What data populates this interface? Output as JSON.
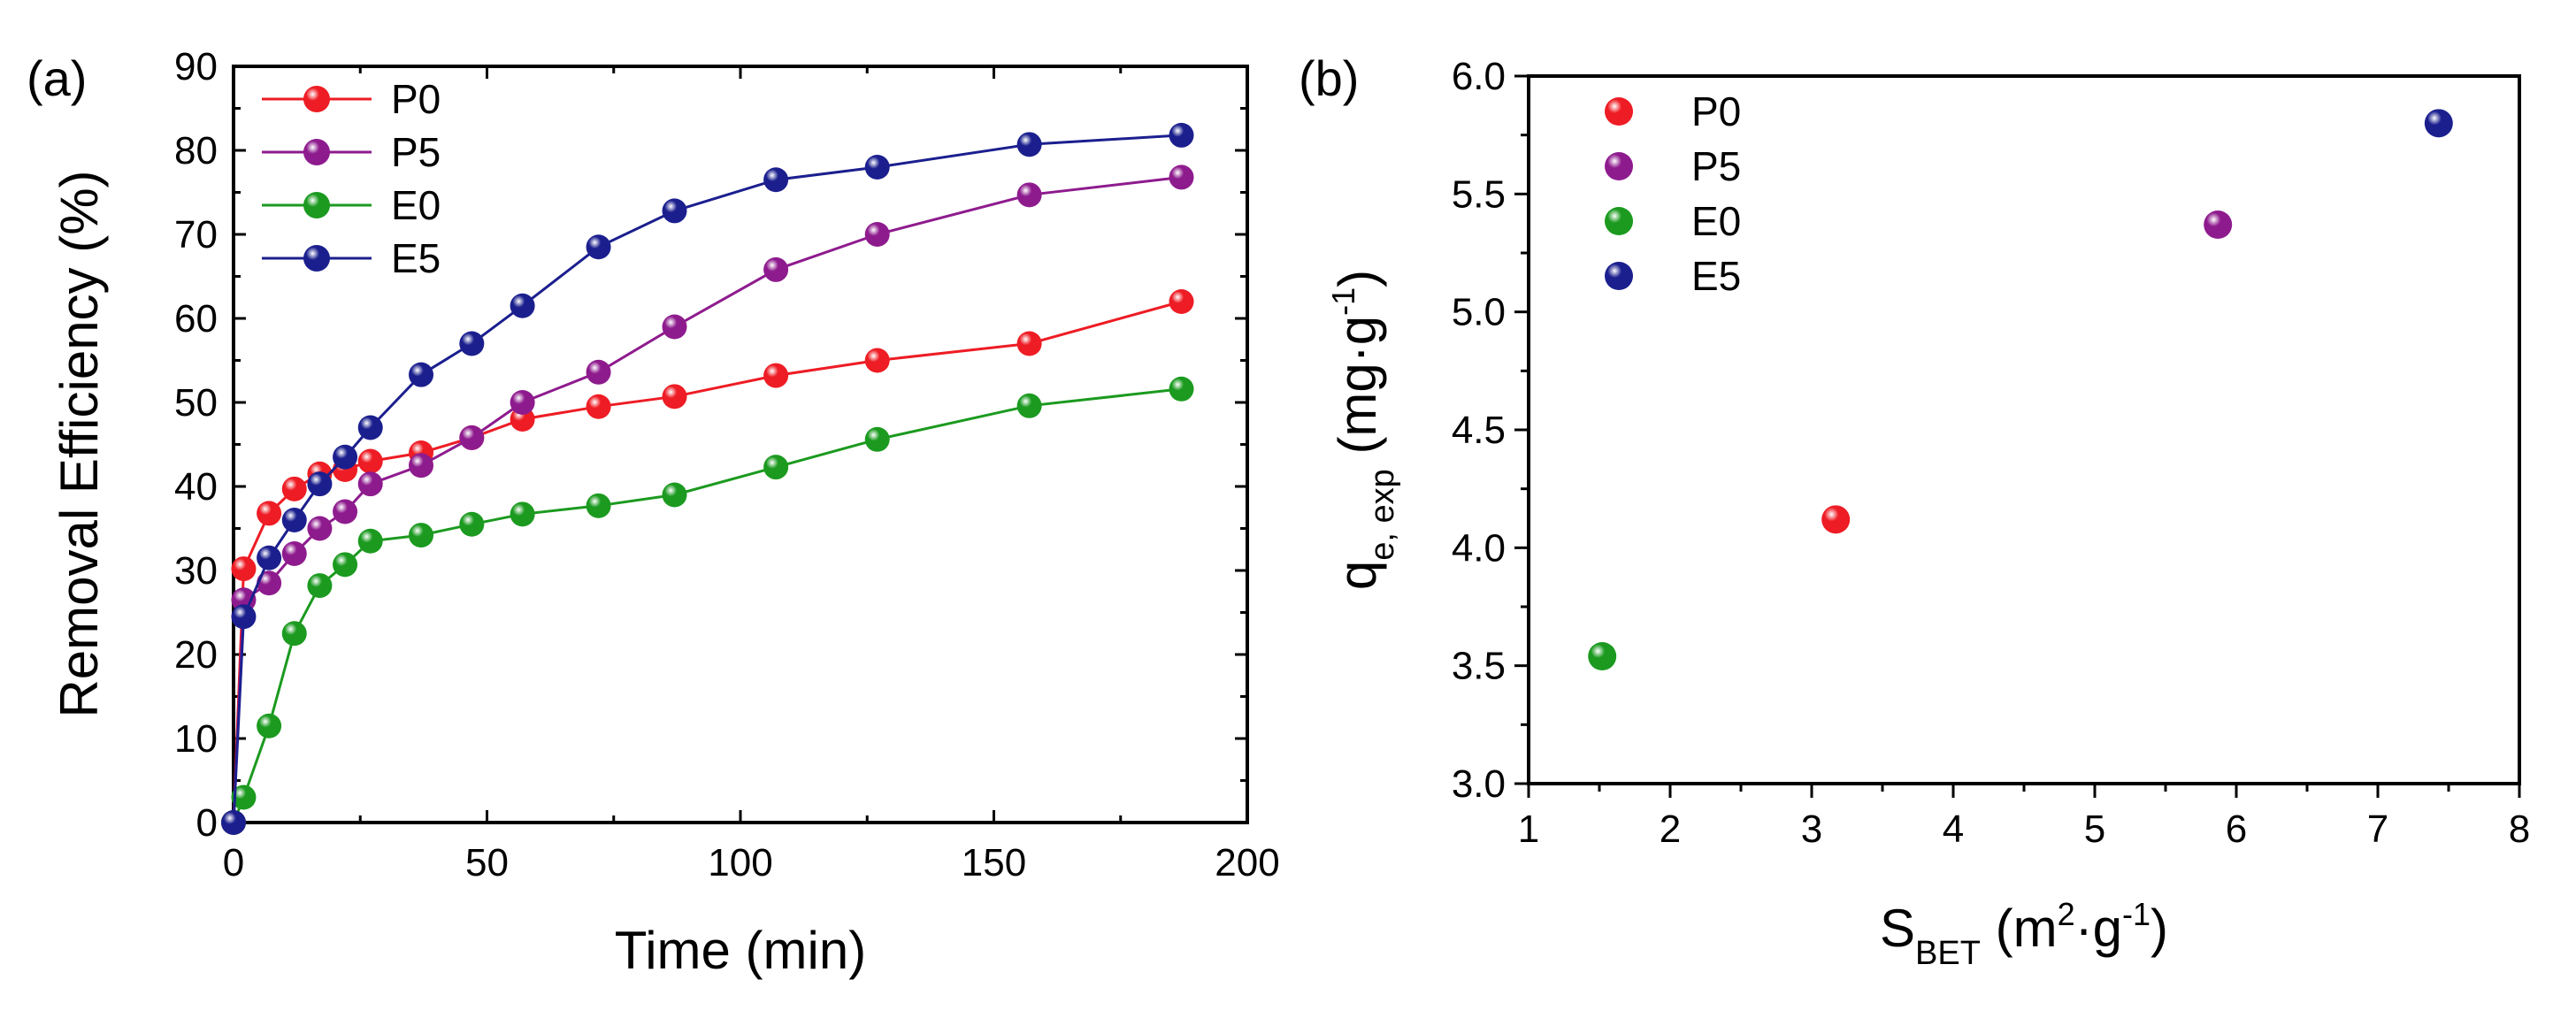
{
  "chart_data": [
    {
      "type": "line",
      "panel_label": "(a)",
      "xlabel": "Time (min)",
      "ylabel": "Removal Efficiency (%)",
      "xlim": [
        0,
        200
      ],
      "ylim": [
        0,
        90
      ],
      "xticks": [
        0,
        50,
        100,
        150,
        200
      ],
      "yticks": [
        0,
        10,
        20,
        30,
        40,
        50,
        60,
        70,
        80,
        90
      ],
      "legend_position": "top-left",
      "series": [
        {
          "name": "P0",
          "color": "#ee1c24",
          "x": [
            0,
            2,
            7,
            12,
            17,
            22,
            27,
            37,
            47,
            57,
            72,
            87,
            107,
            127,
            157,
            187
          ],
          "y": [
            0,
            30.2,
            36.8,
            39.7,
            41.5,
            42.0,
            43.0,
            44.0,
            45.8,
            48.0,
            49.5,
            50.7,
            53.2,
            55.0,
            57.0,
            62.0
          ]
        },
        {
          "name": "P5",
          "color": "#8e1b8e",
          "x": [
            0,
            2,
            7,
            12,
            17,
            22,
            27,
            37,
            47,
            57,
            72,
            87,
            107,
            127,
            157,
            187
          ],
          "y": [
            0,
            26.5,
            28.5,
            32.0,
            35.0,
            37.0,
            40.3,
            42.5,
            45.8,
            50.0,
            53.6,
            59.0,
            65.8,
            70.0,
            74.7,
            76.8
          ]
        },
        {
          "name": "E0",
          "color": "#1b9a1f",
          "x": [
            0,
            2,
            7,
            12,
            17,
            22,
            27,
            37,
            47,
            57,
            72,
            87,
            107,
            127,
            157,
            187
          ],
          "y": [
            0,
            3.0,
            11.5,
            22.5,
            28.2,
            30.7,
            33.5,
            34.2,
            35.5,
            36.7,
            37.7,
            39.0,
            42.3,
            45.6,
            49.6,
            51.6
          ]
        },
        {
          "name": "E5",
          "color": "#1b1f8e",
          "x": [
            0,
            2,
            7,
            12,
            17,
            22,
            27,
            37,
            47,
            57,
            72,
            87,
            107,
            127,
            157,
            187
          ],
          "y": [
            0,
            24.5,
            31.5,
            36.0,
            40.3,
            43.5,
            47.0,
            53.3,
            57.0,
            61.5,
            68.5,
            72.8,
            76.5,
            78.0,
            80.7,
            81.8
          ]
        }
      ]
    },
    {
      "type": "scatter",
      "panel_label": "(b)",
      "xlabel": "S",
      "xlabel_sub": "BET",
      "xlabel_rest": " (m",
      "xlabel_sup1": "2",
      "xlabel_mid": "·g",
      "xlabel_sup2": "-1",
      "xlabel_end": ")",
      "ylabel": "q",
      "ylabel_sub": "e, exp",
      "ylabel_rest": " (mg·g",
      "ylabel_sup": "-1",
      "ylabel_end": ")",
      "xlim": [
        1,
        8
      ],
      "ylim": [
        3.0,
        6.0
      ],
      "xticks": [
        1,
        2,
        3,
        4,
        5,
        6,
        7,
        8
      ],
      "yticks": [
        "3.0",
        "3.5",
        "4.0",
        "4.5",
        "5.0",
        "5.5",
        "6.0"
      ],
      "legend_position": "top-left",
      "series": [
        {
          "name": "P0",
          "color": "#ee1c24",
          "x": [
            3.17
          ],
          "y": [
            4.12
          ]
        },
        {
          "name": "P5",
          "color": "#8e1b8e",
          "x": [
            5.87
          ],
          "y": [
            5.37
          ]
        },
        {
          "name": "E0",
          "color": "#1b9a1f",
          "x": [
            1.52
          ],
          "y": [
            3.54
          ]
        },
        {
          "name": "E5",
          "color": "#1b1f8e",
          "x": [
            7.43
          ],
          "y": [
            5.8
          ]
        }
      ]
    }
  ]
}
